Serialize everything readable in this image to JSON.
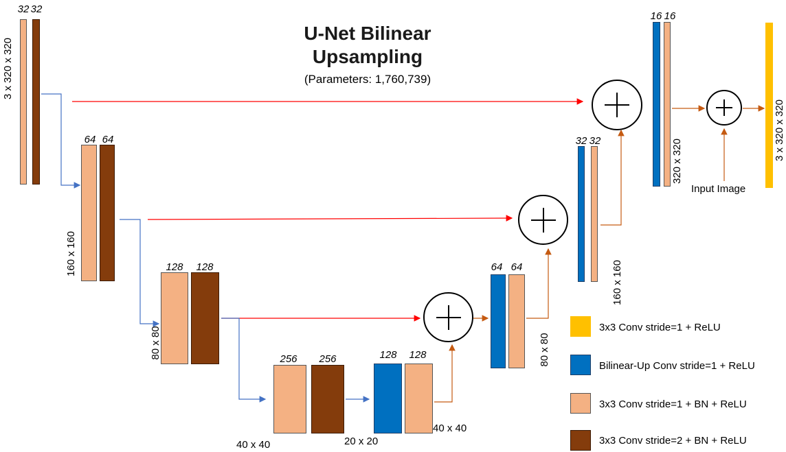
{
  "title": {
    "line1": "U-Net Bilinear",
    "line2": "Upsampling",
    "params": "(Parameters: 1,760,739)"
  },
  "channels": {
    "enc1a": "32",
    "enc1b": "32",
    "enc2a": "64",
    "enc2b": "64",
    "enc3a": "128",
    "enc3b": "128",
    "enc4a": "256",
    "enc4b": "256",
    "dec4a": "128",
    "dec4b": "128",
    "dec3a": "64",
    "dec3b": "64",
    "dec2a": "32",
    "dec2b": "32",
    "dec1a": "16",
    "dec1b": "16"
  },
  "dims": {
    "input": "3 x 320 x 320",
    "d160": "160 x 160",
    "d80": "80 x 80",
    "d40": "40 x 40",
    "d20": "20 x 20",
    "dec40": "40 x 40",
    "dec80": "80 x 80",
    "dec160": "160 x 160",
    "dec320": "320 x 320",
    "output": "3 x 320 x 320"
  },
  "input_image_label": "Input Image",
  "legend": [
    {
      "label": "3x3 Conv stride=1 + ReLU",
      "color": "#ffc000"
    },
    {
      "label": "Bilinear-Up Conv stride=1 + ReLU",
      "color": "#0070c0"
    },
    {
      "label": "3x3 Conv stride=1 + BN + ReLU",
      "color": "#f4b183"
    },
    {
      "label": "3x3 Conv stride=2 + BN + ReLU",
      "color": "#843c0c"
    }
  ],
  "colors": {
    "skip_arrow": "#ff0000",
    "down_arrow": "#4472c4",
    "up_arrow": "#c55a11"
  }
}
